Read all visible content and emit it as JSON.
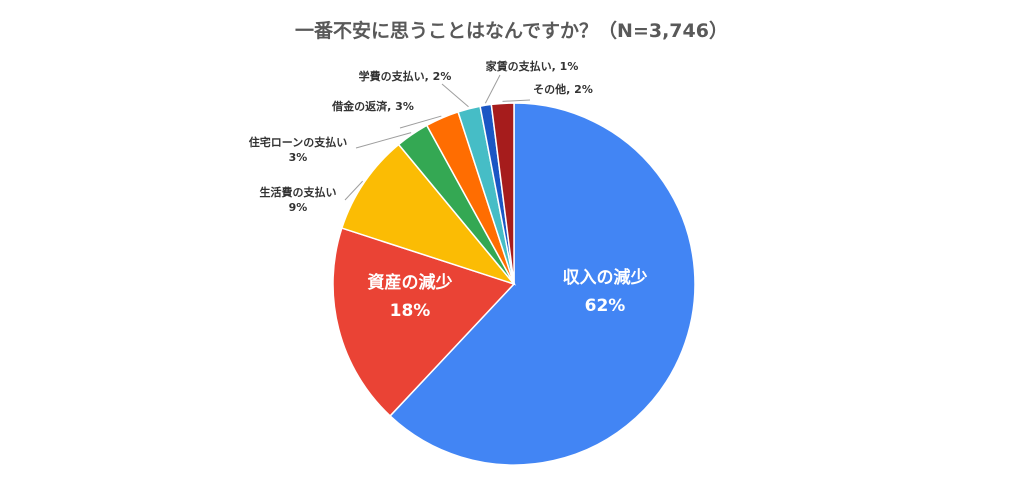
{
  "chart_data": {
    "type": "pie",
    "title": "一番不安に思うことはなんですか？（N=3,746）",
    "slices": [
      {
        "name": "収入の減少",
        "value": 62,
        "label": "62%",
        "color": "#4285f4"
      },
      {
        "name": "資産の減少",
        "value": 18,
        "label": "18%",
        "color": "#ea4335"
      },
      {
        "name": "生活費の支払い",
        "value": 9,
        "label": "9%",
        "color": "#fbbc04"
      },
      {
        "name": "住宅ローンの支払い",
        "value": 3,
        "label": "3%",
        "color": "#34a853"
      },
      {
        "name": "借金の返済",
        "value": 3,
        "label": "3%",
        "color": "#ff6d01"
      },
      {
        "name": "学費の支払い",
        "value": 2,
        "label": "2%",
        "color": "#46bdc6"
      },
      {
        "name": "家賃の支払い",
        "value": 1,
        "label": "1%",
        "color": "#1a56c4"
      },
      {
        "name": "その他",
        "value": 2,
        "label": "2%",
        "color": "#a61c1c"
      }
    ]
  }
}
